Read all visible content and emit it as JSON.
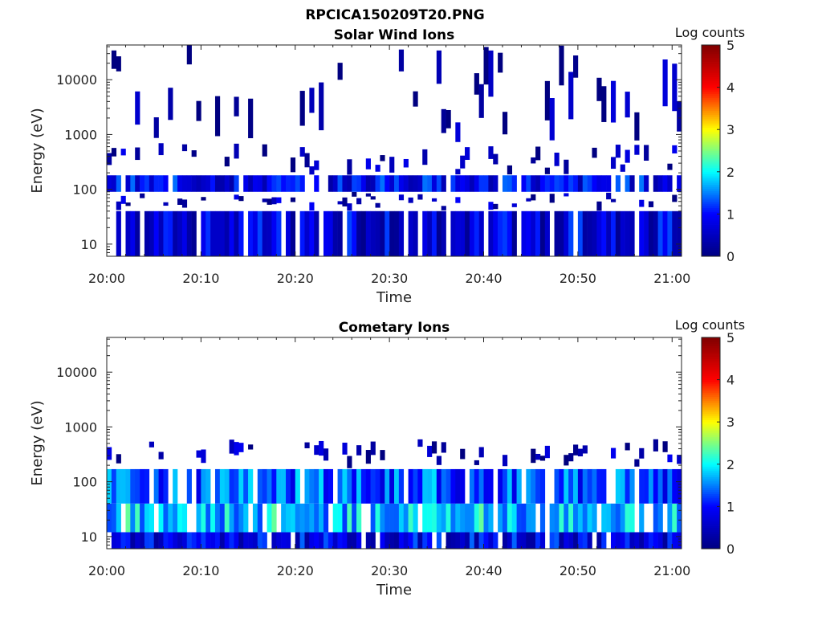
{
  "figure_title": "RPCICA150209T20.PNG",
  "colors": {
    "cmap": [
      "#000080",
      "#0000ff",
      "#00ffff",
      "#ffff00",
      "#ff0000",
      "#800000"
    ]
  },
  "chart_data": [
    {
      "type": "heatmap",
      "title": "Solar Wind Ions",
      "xlabel": "Time",
      "ylabel": "Energy (eV)",
      "xticks": [
        "20:00",
        "20:10",
        "20:20",
        "20:30",
        "20:40",
        "20:50",
        "21:00"
      ],
      "xlim_minutes": [
        0,
        61
      ],
      "yticks": [
        {
          "value": 10,
          "label": "10"
        },
        {
          "value": 100,
          "label": "100"
        },
        {
          "value": 1000,
          "label": "1000"
        },
        {
          "value": 10000,
          "label": "10000"
        }
      ],
      "ylim": [
        6,
        43000
      ],
      "yscale": "log",
      "colorbar": {
        "title": "Log counts",
        "min": 0,
        "max": 5,
        "ticks": [
          "0",
          "1",
          "2",
          "3",
          "4",
          "5"
        ]
      },
      "bands": [
        {
          "emin": 6,
          "emax": 40,
          "level": 0.7
        },
        {
          "emin": 40,
          "emax": 90,
          "level": 0.4
        },
        {
          "emin": 90,
          "emax": 180,
          "level": 0.9
        },
        {
          "emin": 180,
          "emax": 700,
          "level": 0.3
        },
        {
          "emin": 700,
          "emax": 43000,
          "level": 0.15
        }
      ]
    },
    {
      "type": "heatmap",
      "title": "Cometary Ions",
      "xlabel": "Time",
      "ylabel": "Energy (eV)",
      "xticks": [
        "20:00",
        "20:10",
        "20:20",
        "20:30",
        "20:40",
        "20:50",
        "21:00"
      ],
      "xlim_minutes": [
        0,
        61
      ],
      "yticks": [
        {
          "value": 10,
          "label": "10"
        },
        {
          "value": 100,
          "label": "100"
        },
        {
          "value": 1000,
          "label": "1000"
        },
        {
          "value": 10000,
          "label": "10000"
        }
      ],
      "ylim": [
        6,
        43000
      ],
      "yscale": "log",
      "colorbar": {
        "title": "Log counts",
        "min": 0,
        "max": 5,
        "ticks": [
          "0",
          "1",
          "2",
          "3",
          "4",
          "5"
        ]
      },
      "bands": [
        {
          "emin": 6,
          "emax": 12,
          "level": 0.8
        },
        {
          "emin": 12,
          "emax": 40,
          "level": 1.8
        },
        {
          "emin": 40,
          "emax": 170,
          "level": 1.3
        },
        {
          "emin": 170,
          "emax": 600,
          "level": 0.3
        }
      ]
    }
  ]
}
